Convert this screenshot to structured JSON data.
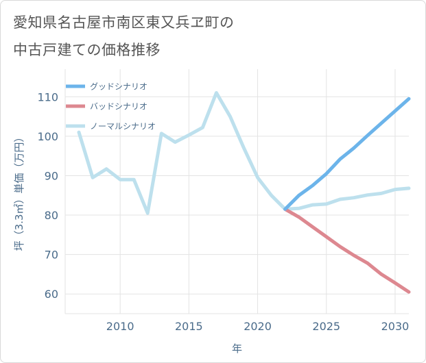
{
  "title": {
    "line1": "愛知県名古屋市南区東又兵ヱ町の",
    "line2": "中古戸建ての価格推移"
  },
  "chart_data": {
    "type": "line",
    "xlabel": "年",
    "ylabel": "坪（3.3㎡）単価（万円）",
    "xlim": [
      2006,
      2031
    ],
    "ylim": [
      55,
      117
    ],
    "xticks": [
      2010,
      2015,
      2020,
      2025,
      2030
    ],
    "yticks": [
      60,
      70,
      80,
      90,
      100,
      110
    ],
    "legend_position": "top-left",
    "series": [
      {
        "name": "グッドシナリオ",
        "color": "#6cb4ea",
        "x": [
          2022,
          2023,
          2024,
          2025,
          2026,
          2027,
          2028,
          2029,
          2030,
          2031
        ],
        "values": [
          81.5,
          85,
          87.5,
          90.5,
          94.2,
          97,
          100.2,
          103.3,
          106.4,
          109.5
        ]
      },
      {
        "name": "バッドシナリオ",
        "color": "#dd8890",
        "x": [
          2022,
          2023,
          2024,
          2025,
          2026,
          2027,
          2028,
          2029,
          2030,
          2031
        ],
        "values": [
          81.5,
          79.5,
          77,
          74.5,
          72,
          69.8,
          67.8,
          65,
          62.8,
          60.5
        ]
      },
      {
        "name": "ノーマルシナリオ",
        "color": "#bde0ed",
        "x": [
          2007,
          2008,
          2009,
          2010,
          2011,
          2012,
          2013,
          2014,
          2015,
          2016,
          2017,
          2018,
          2019,
          2020,
          2021,
          2022,
          2023,
          2024,
          2025,
          2026,
          2027,
          2028,
          2029,
          2030,
          2031
        ],
        "values": [
          101,
          89.5,
          91.7,
          89,
          89,
          80.5,
          100.7,
          98.5,
          100.3,
          102.2,
          111,
          105,
          97,
          89.5,
          85,
          81.5,
          81.7,
          82.6,
          82.8,
          84,
          84.4,
          85.1,
          85.5,
          86.5,
          86.8
        ]
      }
    ]
  }
}
